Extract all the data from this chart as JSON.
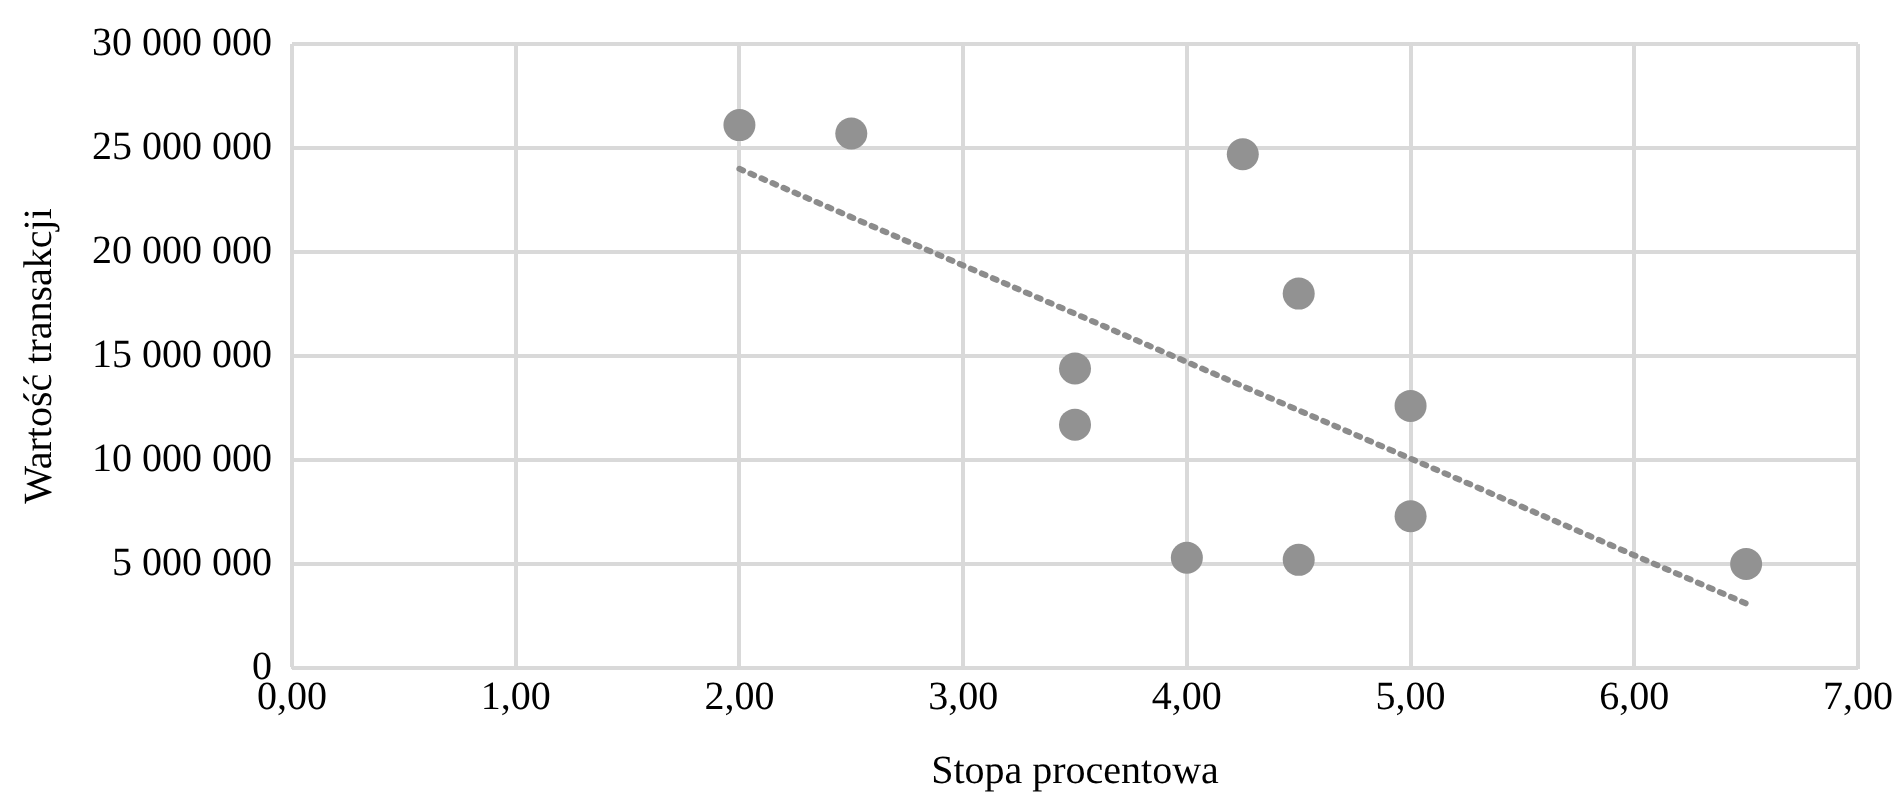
{
  "chart_data": {
    "type": "scatter",
    "xlabel": "Stopa procentowa",
    "ylabel": "Wartość transakcji",
    "xlim": [
      0,
      7
    ],
    "ylim": [
      0,
      30000000
    ],
    "xticks": [
      {
        "value": 0,
        "label": "0,00"
      },
      {
        "value": 1,
        "label": "1,00"
      },
      {
        "value": 2,
        "label": "2,00"
      },
      {
        "value": 3,
        "label": "3,00"
      },
      {
        "value": 4,
        "label": "4,00"
      },
      {
        "value": 5,
        "label": "5,00"
      },
      {
        "value": 6,
        "label": "6,00"
      },
      {
        "value": 7,
        "label": "7,00"
      }
    ],
    "yticks": [
      0,
      {
        "value": 5000000,
        "label": "5 000 000"
      },
      {
        "value": 10000000,
        "label": "10 000 000"
      },
      {
        "value": 15000000,
        "label": "15 000 000"
      },
      {
        "value": 20000000,
        "label": "20 000 000"
      },
      {
        "value": 25000000,
        "label": "25 000 000"
      },
      {
        "value": 30000000,
        "label": "30 000 000"
      }
    ],
    "grid": true,
    "marker": "circle",
    "series": [
      {
        "type": "scatter",
        "color": "#929292",
        "x": [
          2.0,
          2.5,
          4.25,
          4.5,
          3.5,
          3.5,
          5.0,
          4.0,
          4.5,
          5.0,
          6.5
        ],
        "values": [
          26100000,
          25700000,
          24700000,
          18000000,
          14400000,
          11700000,
          12600000,
          5300000,
          5200000,
          7300000,
          5000000
        ]
      },
      {
        "type": "line",
        "color": "#8c8c8c",
        "line_style": "dotted",
        "marker": "none",
        "x": [
          2.0,
          6.5
        ],
        "values": [
          24000000,
          3100000
        ]
      }
    ]
  }
}
